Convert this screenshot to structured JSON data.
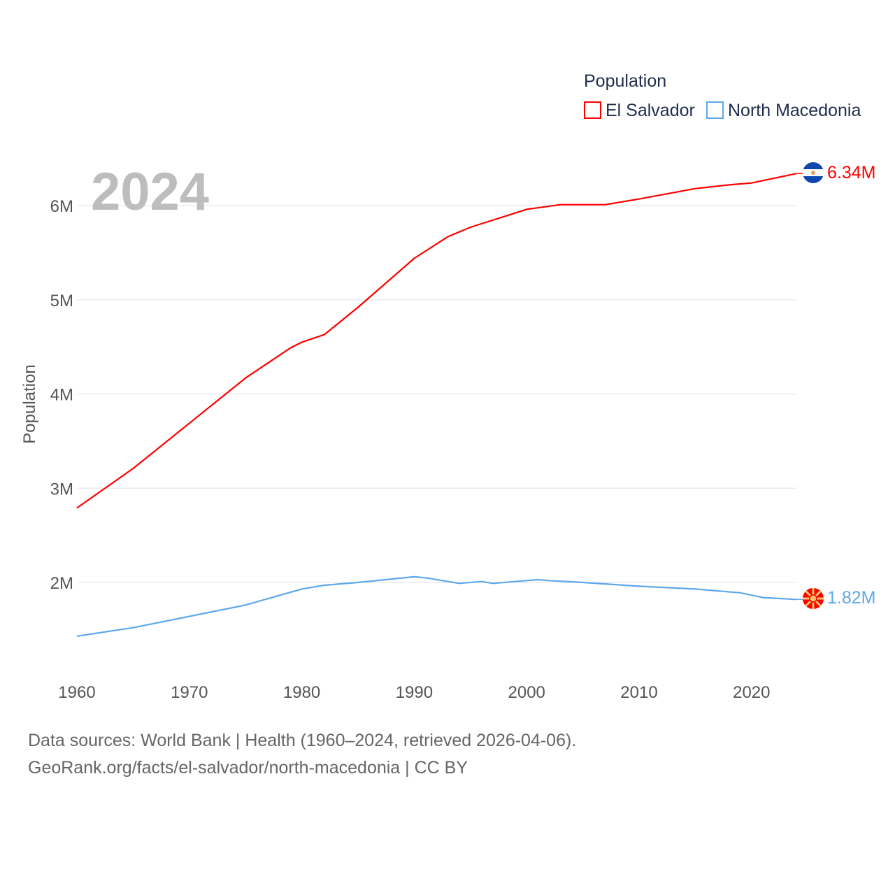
{
  "chart_data": {
    "type": "line",
    "ylabel": "Population",
    "year_label": "2024",
    "legend": {
      "title": "Population",
      "position": "top-right"
    },
    "xlim": [
      1960,
      2024
    ],
    "ylim": [
      0,
      6.5
    ],
    "x_ticks": [
      "1960",
      "1970",
      "1980",
      "1990",
      "2000",
      "2010",
      "2020"
    ],
    "y_ticks": [
      {
        "v": 2,
        "label": "2M"
      },
      {
        "v": 3,
        "label": "3M"
      },
      {
        "v": 4,
        "label": "4M"
      },
      {
        "v": 5,
        "label": "5M"
      },
      {
        "v": 6,
        "label": "6M"
      }
    ],
    "series": [
      {
        "name": "El Salvador",
        "color": "#ff0000",
        "end_label": "6.34M",
        "x": [
          1960,
          1965,
          1970,
          1975,
          1979,
          1980,
          1982,
          1985,
          1990,
          1993,
          1995,
          2000,
          2003,
          2007,
          2010,
          2015,
          2018,
          2020,
          2024
        ],
        "values": [
          2.79,
          3.21,
          3.69,
          4.17,
          4.49,
          4.55,
          4.63,
          4.92,
          5.44,
          5.67,
          5.77,
          5.96,
          6.01,
          6.01,
          6.07,
          6.18,
          6.22,
          6.24,
          6.34
        ]
      },
      {
        "name": "North Macedonia",
        "color": "#5fa8ec",
        "end_label": "1.82M",
        "x": [
          1960,
          1965,
          1970,
          1975,
          1980,
          1982,
          1985,
          1990,
          1991,
          1994,
          1996,
          1997,
          2000,
          2001,
          2002,
          2005,
          2010,
          2015,
          2019,
          2021,
          2024
        ],
        "values": [
          1.43,
          1.52,
          1.64,
          1.76,
          1.93,
          1.97,
          2.0,
          2.06,
          2.05,
          1.99,
          2.01,
          1.99,
          2.02,
          2.03,
          2.02,
          2.0,
          1.96,
          1.93,
          1.89,
          1.84,
          1.82
        ]
      }
    ]
  },
  "footer": {
    "line1": "Data sources: World Bank | Health (1960–2024, retrieved 2026-04-06).",
    "line2": "GeoRank.org/facts/el-salvador/north-macedonia | CC BY"
  }
}
